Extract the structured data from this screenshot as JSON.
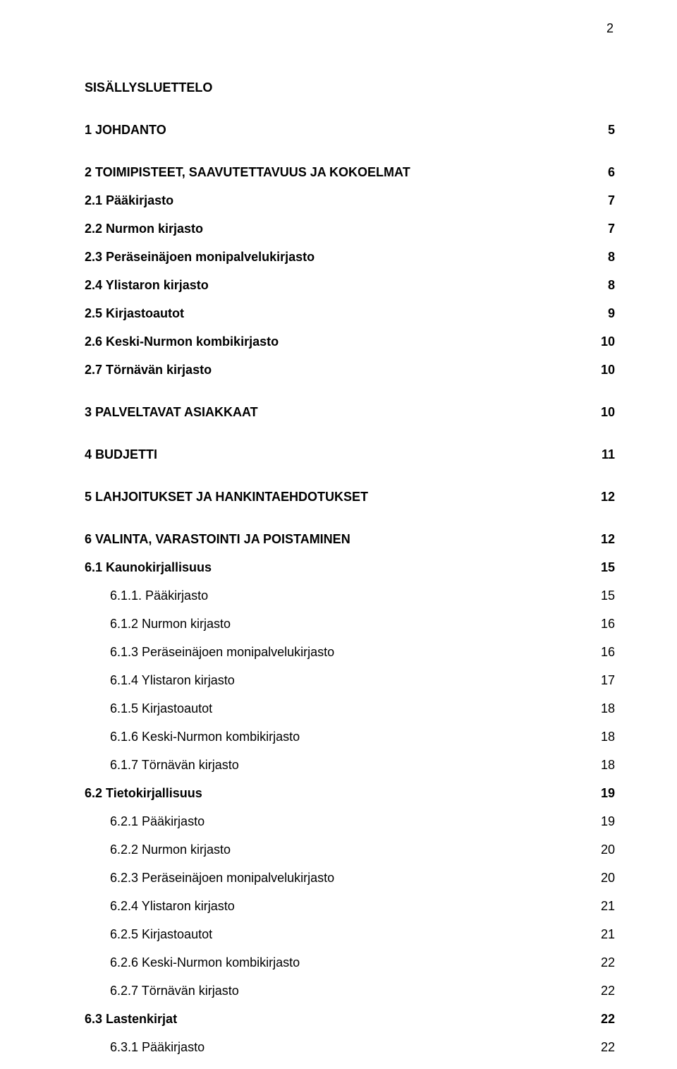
{
  "page_number": "2",
  "heading": "SISÄLLYSLUETTELO",
  "entries": [
    {
      "label": "1 JOHDANTO",
      "page": "5",
      "bold": true,
      "spacing": "mt-large",
      "indent": 0
    },
    {
      "label": "2 TOIMIPISTEET, SAAVUTETTAVUUS JA KOKOELMAT",
      "page": "6",
      "bold": true,
      "spacing": "mt-large",
      "indent": 0
    },
    {
      "label": "2.1 Pääkirjasto",
      "page": "7",
      "bold": true,
      "spacing": "mt-med",
      "indent": 0
    },
    {
      "label": "2.2 Nurmon kirjasto",
      "page": "7",
      "bold": true,
      "spacing": "mt-med",
      "indent": 0
    },
    {
      "label": "2.3 Peräseinäjoen monipalvelukirjasto",
      "page": "8",
      "bold": true,
      "spacing": "mt-med",
      "indent": 0
    },
    {
      "label": "2.4 Ylistaron kirjasto",
      "page": "8",
      "bold": true,
      "spacing": "mt-med",
      "indent": 0
    },
    {
      "label": "2.5 Kirjastoautot",
      "page": "9",
      "bold": true,
      "spacing": "mt-med",
      "indent": 0
    },
    {
      "label": "2.6 Keski-Nurmon kombikirjasto",
      "page": "10",
      "bold": true,
      "spacing": "mt-med",
      "indent": 0
    },
    {
      "label": "2.7 Törnävän kirjasto",
      "page": "10",
      "bold": true,
      "spacing": "mt-med",
      "indent": 0
    },
    {
      "label": "3 PALVELTAVAT ASIAKKAAT",
      "page": "10",
      "bold": true,
      "spacing": "mt-large",
      "indent": 0
    },
    {
      "label": "4 BUDJETTI",
      "page": "11",
      "bold": true,
      "spacing": "mt-large",
      "indent": 0
    },
    {
      "label": "5 LAHJOITUKSET JA HANKINTAEHDOTUKSET",
      "page": "12",
      "bold": true,
      "spacing": "mt-large",
      "indent": 0
    },
    {
      "label": "6 VALINTA, VARASTOINTI JA POISTAMINEN",
      "page": "12",
      "bold": true,
      "spacing": "mt-large",
      "indent": 0
    },
    {
      "label": "6.1 Kaunokirjallisuus",
      "page": "15",
      "bold": true,
      "spacing": "mt-med",
      "indent": 0
    },
    {
      "label": "6.1.1. Pääkirjasto",
      "page": "15",
      "bold": false,
      "spacing": "mt-sub",
      "indent": 1
    },
    {
      "label": "6.1.2 Nurmon kirjasto",
      "page": "16",
      "bold": false,
      "spacing": "mt-sub",
      "indent": 1
    },
    {
      "label": "6.1.3 Peräseinäjoen monipalvelukirjasto",
      "page": "16",
      "bold": false,
      "spacing": "mt-sub",
      "indent": 1
    },
    {
      "label": "6.1.4 Ylistaron kirjasto",
      "page": "17",
      "bold": false,
      "spacing": "mt-sub",
      "indent": 1
    },
    {
      "label": "6.1.5 Kirjastoautot",
      "page": "18",
      "bold": false,
      "spacing": "mt-sub",
      "indent": 1
    },
    {
      "label": "6.1.6 Keski-Nurmon kombikirjasto",
      "page": "18",
      "bold": false,
      "spacing": "mt-sub",
      "indent": 1
    },
    {
      "label": "6.1.7 Törnävän kirjasto",
      "page": "18",
      "bold": false,
      "spacing": "mt-sub",
      "indent": 1
    },
    {
      "label": "6.2 Tietokirjallisuus",
      "page": "19",
      "bold": true,
      "spacing": "mt-med",
      "indent": 0
    },
    {
      "label": "6.2.1 Pääkirjasto",
      "page": "19",
      "bold": false,
      "spacing": "mt-sub",
      "indent": 1
    },
    {
      "label": "6.2.2 Nurmon kirjasto",
      "page": "20",
      "bold": false,
      "spacing": "mt-sub",
      "indent": 1
    },
    {
      "label": "6.2.3 Peräseinäjoen monipalvelukirjasto",
      "page": "20",
      "bold": false,
      "spacing": "mt-sub",
      "indent": 1
    },
    {
      "label": "6.2.4 Ylistaron kirjasto",
      "page": "21",
      "bold": false,
      "spacing": "mt-sub",
      "indent": 1
    },
    {
      "label": "6.2.5 Kirjastoautot",
      "page": "21",
      "bold": false,
      "spacing": "mt-sub",
      "indent": 1
    },
    {
      "label": "6.2.6 Keski-Nurmon kombikirjasto",
      "page": "22",
      "bold": false,
      "spacing": "mt-sub",
      "indent": 1
    },
    {
      "label": "6.2.7 Törnävän kirjasto",
      "page": "22",
      "bold": false,
      "spacing": "mt-sub",
      "indent": 1
    },
    {
      "label": "6.3 Lastenkirjat",
      "page": "22",
      "bold": true,
      "spacing": "mt-med",
      "indent": 0
    },
    {
      "label": "6.3.1 Pääkirjasto",
      "page": "22",
      "bold": false,
      "spacing": "mt-sub",
      "indent": 1
    }
  ]
}
